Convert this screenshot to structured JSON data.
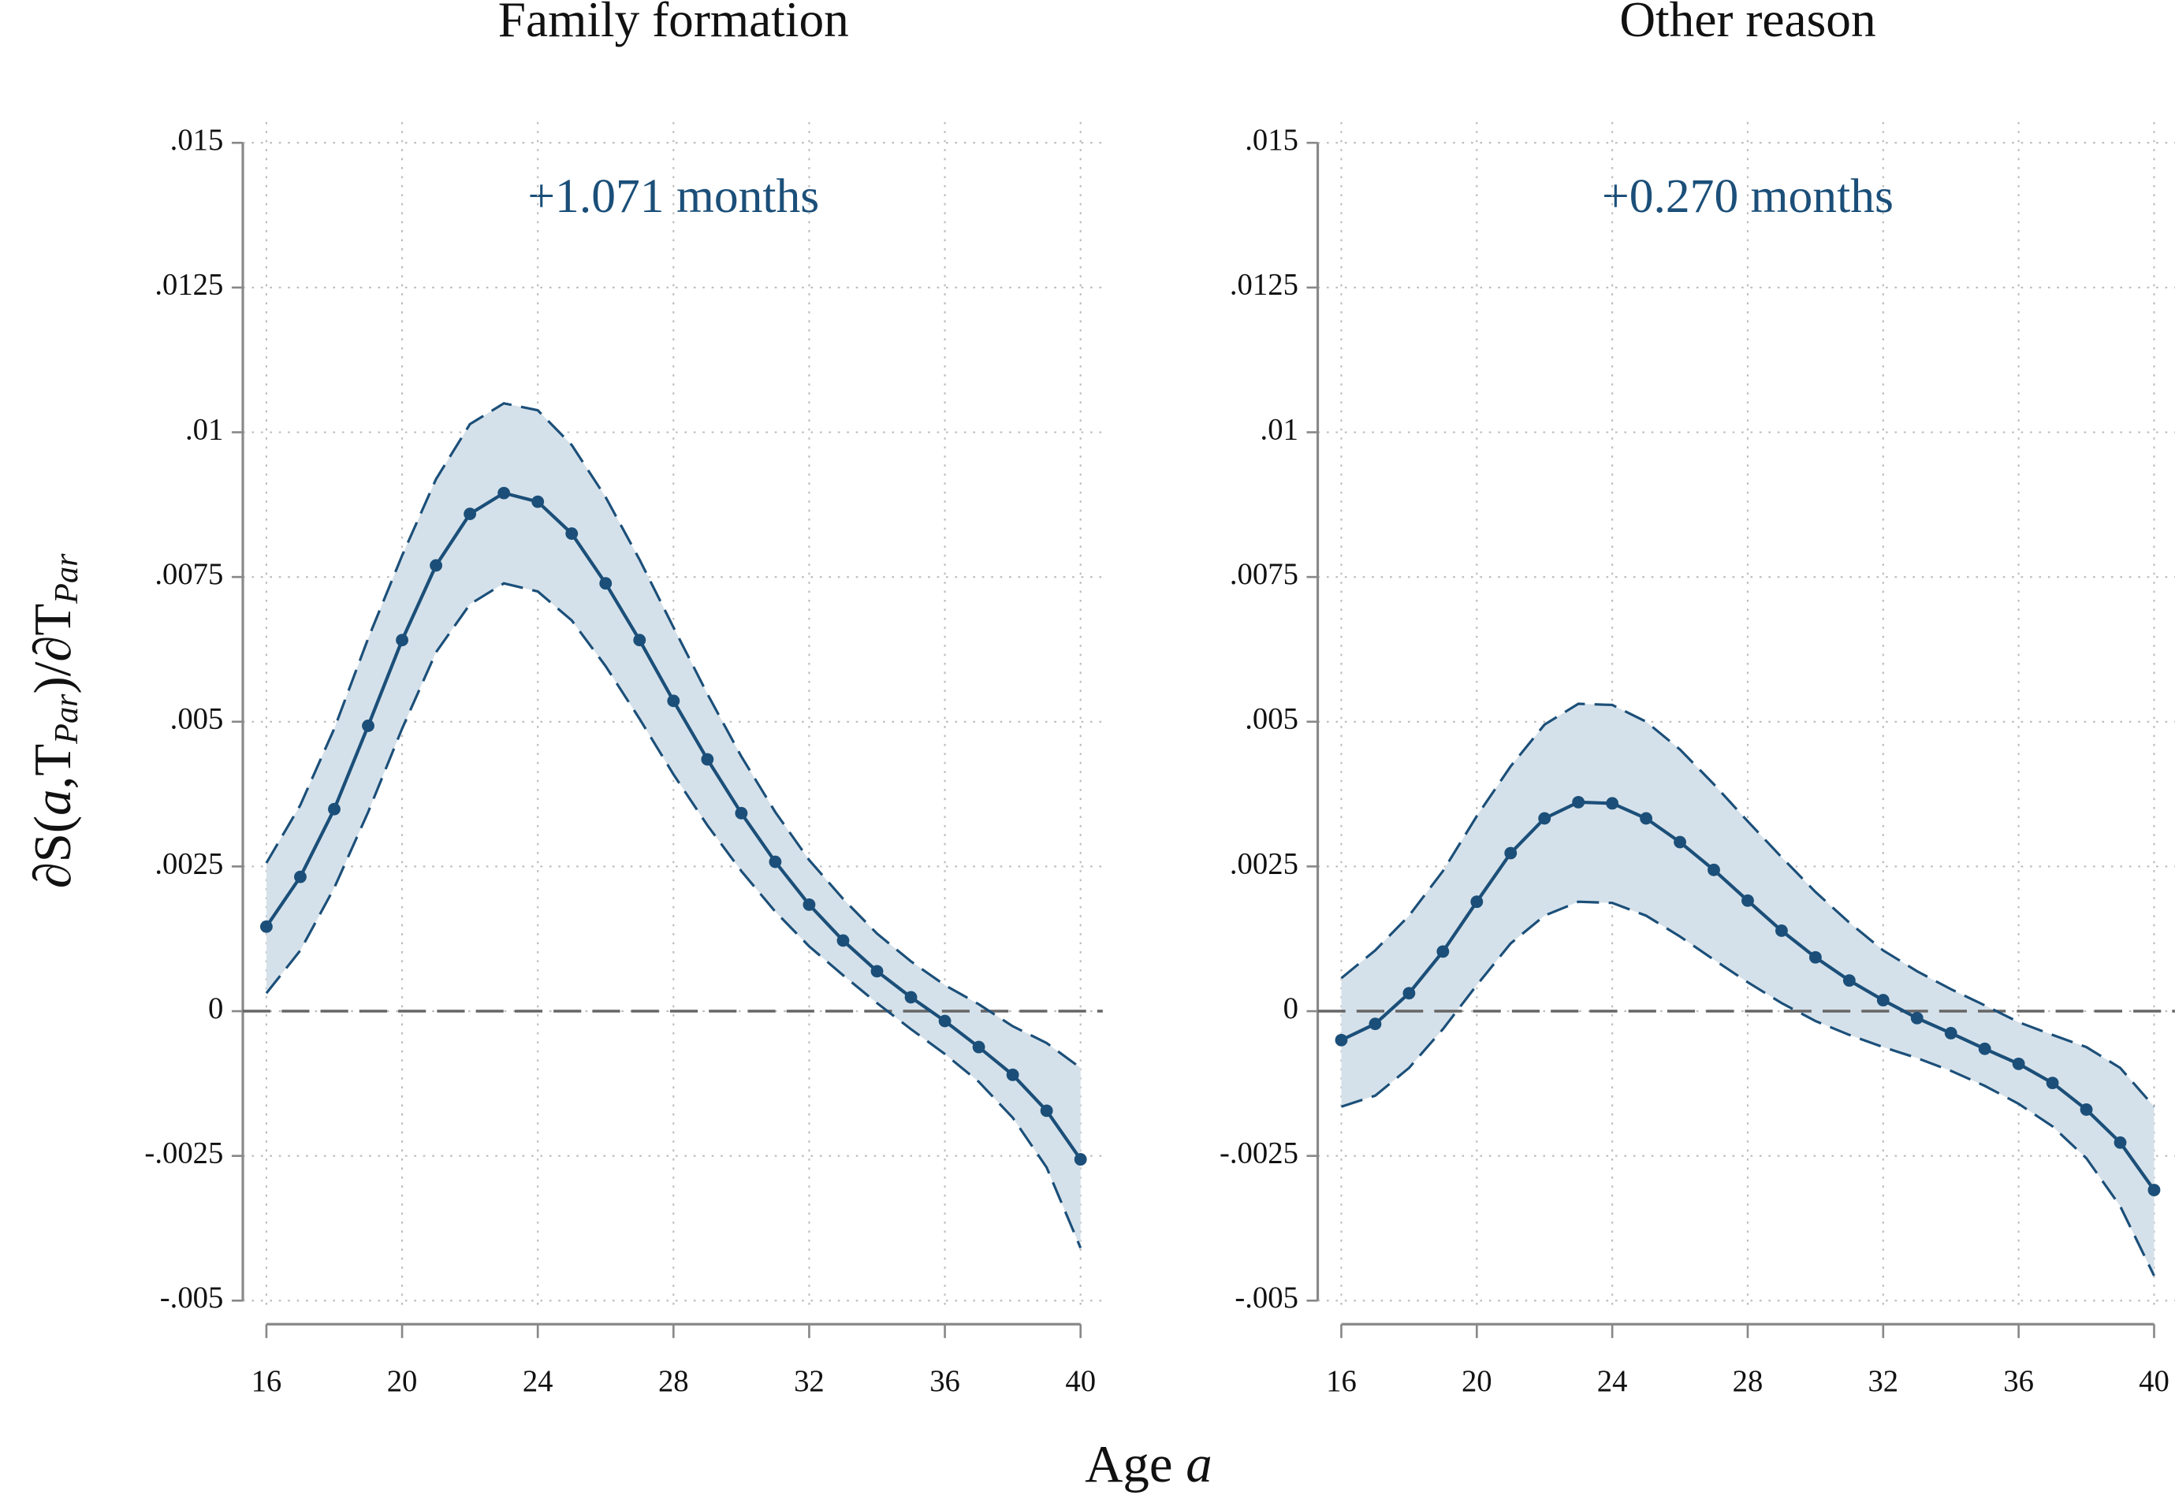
{
  "figure": {
    "xlabel": [
      "Age ",
      "a"
    ],
    "ylabel": [
      "∂S(",
      "a",
      ",T",
      "Par",
      ")/∂T",
      "Par"
    ]
  },
  "chart_data": [
    {
      "type": "line",
      "title": "Family formation",
      "annotation": "+1.071 months",
      "color": "#1b4f79",
      "band_color": "#d5e1ea",
      "grid": true,
      "hline": 0,
      "x": [
        16,
        17,
        18,
        19,
        20,
        21,
        22,
        23,
        24,
        25,
        26,
        27,
        28,
        29,
        30,
        31,
        32,
        33,
        34,
        35,
        36,
        37,
        38,
        39,
        40
      ],
      "values": [
        0.00146,
        0.00232,
        0.00349,
        0.00493,
        0.00641,
        0.0077,
        0.00859,
        0.00895,
        0.0088,
        0.00825,
        0.00739,
        0.00641,
        0.00536,
        0.00435,
        0.00342,
        0.00258,
        0.00184,
        0.00122,
        0.00069,
        0.00024,
        -0.00017,
        -0.00062,
        -0.0011,
        -0.00172,
        -0.00256
      ],
      "ci_upper": [
        0.00256,
        0.00356,
        0.00488,
        0.00644,
        0.00787,
        0.00919,
        0.01014,
        0.0105,
        0.01038,
        0.00978,
        0.00888,
        0.0078,
        0.00663,
        0.00548,
        0.0044,
        0.00344,
        0.00261,
        0.00194,
        0.00134,
        0.00086,
        0.00045,
        0.00012,
        -0.00026,
        -0.00055,
        -0.00098
      ],
      "ci_lower": [
        0.00031,
        0.00105,
        0.00213,
        0.00344,
        0.00488,
        0.0062,
        0.00703,
        0.00739,
        0.00725,
        0.00675,
        0.00596,
        0.00505,
        0.00409,
        0.00321,
        0.00242,
        0.00172,
        0.00112,
        0.00062,
        0.00014,
        -0.00031,
        -0.00074,
        -0.00122,
        -0.00184,
        -0.0027,
        -0.00409
      ],
      "xlim": [
        16,
        40
      ],
      "xticks": [
        16,
        20,
        24,
        28,
        32,
        36,
        40
      ],
      "ylim": [
        -0.005,
        0.015
      ],
      "yticks": [
        {
          "value": 0.015,
          "label": ".015"
        },
        {
          "value": 0.0125,
          "label": ".0125"
        },
        {
          "value": 0.01,
          "label": ".01"
        },
        {
          "value": 0.0075,
          "label": ".0075"
        },
        {
          "value": 0.005,
          "label": ".005"
        },
        {
          "value": 0.0025,
          "label": ".0025"
        },
        0,
        {
          "value": -0.0025,
          "label": "-.0025"
        },
        {
          "value": -0.005,
          "label": "-.005"
        }
      ]
    },
    {
      "type": "line",
      "title": "Other reason",
      "annotation": "+0.270 months",
      "color": "#1b4f79",
      "band_color": "#d5e1ea",
      "grid": true,
      "hline": 0,
      "x": [
        16,
        17,
        18,
        19,
        20,
        21,
        22,
        23,
        24,
        25,
        26,
        27,
        28,
        29,
        30,
        31,
        32,
        33,
        34,
        35,
        36,
        37,
        38,
        39,
        40
      ],
      "values": [
        -0.0005,
        -0.00022,
        0.00031,
        0.00103,
        0.00189,
        0.00273,
        0.00333,
        0.00361,
        0.00359,
        0.00333,
        0.00292,
        0.00244,
        0.00191,
        0.00139,
        0.00093,
        0.00053,
        0.00019,
        -0.00012,
        -0.00038,
        -0.00065,
        -0.00091,
        -0.00124,
        -0.0017,
        -0.00227,
        -0.00309
      ],
      "ci_upper": [
        0.00057,
        0.00105,
        0.00165,
        0.00242,
        0.00337,
        0.00423,
        0.00495,
        0.00531,
        0.00529,
        0.005,
        0.00452,
        0.00392,
        0.00328,
        0.00266,
        0.00206,
        0.00153,
        0.00105,
        0.00069,
        0.00038,
        0.0001,
        -0.00019,
        -0.00041,
        -0.00062,
        -0.00098,
        -0.00165
      ],
      "ci_lower": [
        -0.00165,
        -0.00146,
        -0.00098,
        -0.00031,
        0.00045,
        0.00117,
        0.00165,
        0.00189,
        0.00187,
        0.00165,
        0.00129,
        0.00089,
        0.0005,
        0.00014,
        -0.00017,
        -0.00041,
        -0.00062,
        -0.00081,
        -0.00103,
        -0.00129,
        -0.0016,
        -0.00199,
        -0.00254,
        -0.00337,
        -0.00457
      ],
      "xlim": [
        16,
        40
      ],
      "xticks": [
        16,
        20,
        24,
        28,
        32,
        36,
        40
      ],
      "ylim": [
        -0.005,
        0.015
      ],
      "yticks": [
        {
          "value": 0.015,
          "label": ".015"
        },
        {
          "value": 0.0125,
          "label": ".0125"
        },
        {
          "value": 0.01,
          "label": ".01"
        },
        {
          "value": 0.0075,
          "label": ".0075"
        },
        {
          "value": 0.005,
          "label": ".005"
        },
        {
          "value": 0.0025,
          "label": ".0025"
        },
        0,
        {
          "value": -0.0025,
          "label": "-.0025"
        },
        {
          "value": -0.005,
          "label": "-.005"
        }
      ]
    }
  ]
}
